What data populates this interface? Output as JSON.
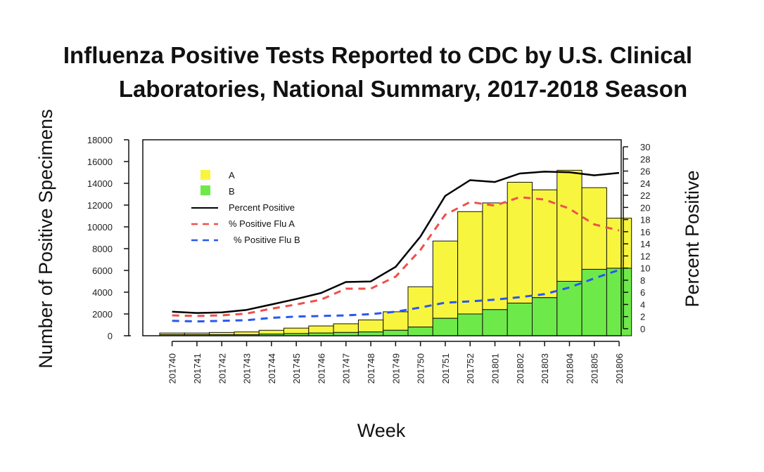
{
  "chart_data": {
    "type": "bar",
    "title_line1": "Influenza Positive Tests Reported to CDC by U.S. Clinical",
    "title_line2": "Laboratories, National Summary, 2017-2018 Season",
    "xlabel": "Week",
    "ylabel": "Number of Positive Specimens",
    "y2label": "Percent Positive",
    "ylim": [
      0,
      18000
    ],
    "y2lim": [
      0,
      30
    ],
    "yticks": [
      "0",
      "2000",
      "4000",
      "6000",
      "8000",
      "10000",
      "12000",
      "14000",
      "16000",
      "18000"
    ],
    "y2ticks": [
      "0",
      "2",
      "4",
      "6",
      "8",
      "10",
      "12",
      "14",
      "16",
      "18",
      "20",
      "22",
      "24",
      "26",
      "28",
      "30"
    ],
    "categories": [
      "201740",
      "201741",
      "201742",
      "201743",
      "201744",
      "201745",
      "201746",
      "201747",
      "201748",
      "201749",
      "201750",
      "201751",
      "201752",
      "201801",
      "201802",
      "201803",
      "201804",
      "201805",
      "201806"
    ],
    "series": [
      {
        "name": "A",
        "kind": "stacked-bar",
        "color": "#f8f53f",
        "values": [
          150,
          150,
          200,
          250,
          350,
          500,
          650,
          800,
          1100,
          1700,
          3700,
          7100,
          9400,
          9800,
          11100,
          9900,
          10200,
          7500,
          4600
        ]
      },
      {
        "name": "B",
        "kind": "stacked-bar",
        "color": "#6ee94a",
        "values": [
          100,
          100,
          100,
          100,
          150,
          200,
          250,
          300,
          350,
          500,
          800,
          1600,
          2000,
          2400,
          3000,
          3500,
          5000,
          6100,
          6200
        ]
      },
      {
        "name": "Percent Positive",
        "kind": "line",
        "axis": "right",
        "color": "#000000",
        "values": [
          2.8,
          2.6,
          2.7,
          3.1,
          4.0,
          4.9,
          5.9,
          7.7,
          7.8,
          10.2,
          15.2,
          21.9,
          24.5,
          24.2,
          25.6,
          25.9,
          25.8,
          25.3,
          25.7
        ]
      },
      {
        "name": "% Positive Flu A",
        "kind": "dashed-line",
        "axis": "right",
        "color": "#f0504a",
        "values": [
          2.2,
          2.1,
          2.2,
          2.5,
          3.3,
          4.0,
          4.8,
          6.6,
          6.6,
          8.6,
          13.0,
          18.8,
          20.9,
          20.3,
          21.7,
          21.3,
          19.8,
          17.2,
          16.2
        ]
      },
      {
        "name": "% Positive Flu B",
        "kind": "dashed-line",
        "axis": "right",
        "color": "#2857f0",
        "values": [
          1.3,
          1.2,
          1.3,
          1.4,
          1.8,
          2.0,
          2.1,
          2.2,
          2.4,
          2.8,
          3.5,
          4.3,
          4.5,
          4.8,
          5.2,
          5.7,
          6.8,
          8.3,
          9.7
        ]
      }
    ],
    "legend": {
      "placement": "top-left"
    },
    "grid": false
  }
}
